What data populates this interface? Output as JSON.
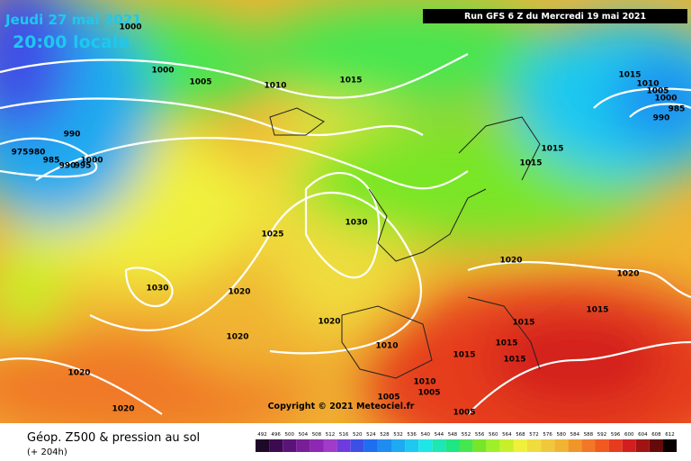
{
  "header": {
    "date": "Jeudi 27 mai 2021",
    "time": "20:00 locale",
    "run": "Run GFS 6 Z du Mercredi 19 mai 2021"
  },
  "copyright": "Copyright © 2021 Meteociel.fr",
  "footer": {
    "title": "Géop. Z500 & pression au sol",
    "lead": "(+ 204h)"
  },
  "isobar_labels": [
    "1000",
    "1000",
    "1005",
    "1010",
    "1015",
    "1015",
    "1010",
    "1005",
    "1000",
    "985",
    "990",
    "990",
    "975",
    "980",
    "985",
    "990",
    "995",
    "1000",
    "1015",
    "1015",
    "1030",
    "1025",
    "1020",
    "1020",
    "1030",
    "1020",
    "1015",
    "1020",
    "1015",
    "1020",
    "1015",
    "1010",
    "1015",
    "1015",
    "1020",
    "1010",
    "1005",
    "1005",
    "1020",
    "1005"
  ],
  "legend": {
    "labels": [
      492,
      496,
      500,
      504,
      508,
      512,
      516,
      520,
      524,
      528,
      532,
      536,
      540,
      544,
      548,
      552,
      556,
      560,
      564,
      568,
      572,
      576,
      580,
      584,
      588,
      592,
      596,
      600,
      604,
      608,
      612
    ],
    "colors": [
      "#1e0a28",
      "#3c0a50",
      "#5a1478",
      "#781e96",
      "#8c28b4",
      "#a03cc8",
      "#6e3cdc",
      "#3c50e6",
      "#1e6ef0",
      "#1e8cf0",
      "#1eaaf0",
      "#1ec8f0",
      "#1ee6e6",
      "#1ee6b4",
      "#1ee682",
      "#46e650",
      "#78e628",
      "#a0f028",
      "#c8f028",
      "#f0f03c",
      "#f0dc3c",
      "#f0c83c",
      "#f0b432",
      "#f09628",
      "#f07828",
      "#f05a1e",
      "#e63c1e",
      "#d21e1e",
      "#a01414",
      "#640a0a",
      "#0a0000"
    ]
  }
}
